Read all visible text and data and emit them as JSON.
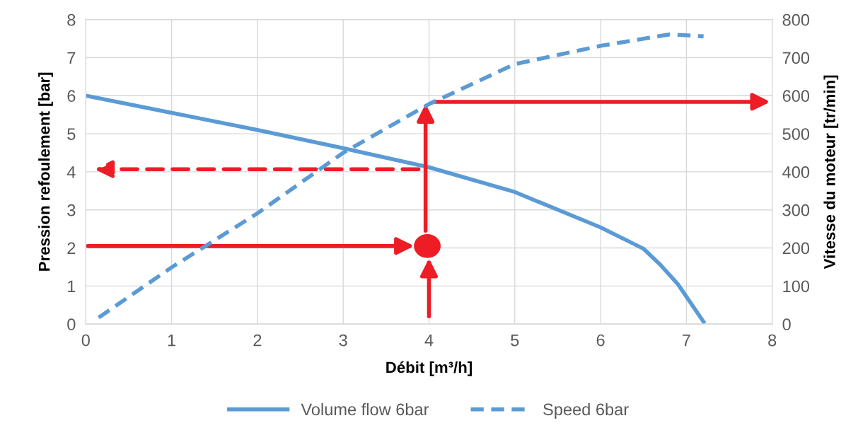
{
  "chart_data": {
    "type": "line",
    "xlabel": "Débit [m³/h]",
    "ylabel": "Pression refoulement [bar]",
    "y2label": "Vitesse du moteur [tr/min]",
    "xlim": [
      0,
      8
    ],
    "xticks": [
      0,
      1,
      2,
      3,
      4,
      5,
      6,
      7,
      8
    ],
    "ylim": [
      0,
      8
    ],
    "yticks": [
      0,
      1,
      2,
      3,
      4,
      5,
      6,
      7,
      8
    ],
    "y2lim": [
      0,
      800
    ],
    "y2ticks": [
      0,
      100,
      200,
      300,
      400,
      500,
      600,
      700,
      800
    ],
    "grid": true,
    "legend": "bottom",
    "series": [
      {
        "name": "Volume flow 6bar",
        "color": "#5b9bd5",
        "line_style": "solid",
        "x": [
          0,
          1,
          2,
          3,
          4,
          5,
          6,
          6.5,
          6.7,
          6.9,
          7.2
        ],
        "values": [
          6,
          5.55,
          5.1,
          4.62,
          4.12,
          3.47,
          2.54,
          1.98,
          1.55,
          1.05,
          0.06
        ]
      },
      {
        "name": "Speed 6bar",
        "color": "#5b9bd5",
        "line_style": "dashed",
        "axis": "y2",
        "x": [
          0.15,
          1,
          2,
          3,
          4,
          5,
          6,
          6.8,
          7.2
        ],
        "values": [
          17,
          149,
          291,
          450,
          578,
          683,
          731,
          761,
          756
        ]
      }
    ]
  }
}
